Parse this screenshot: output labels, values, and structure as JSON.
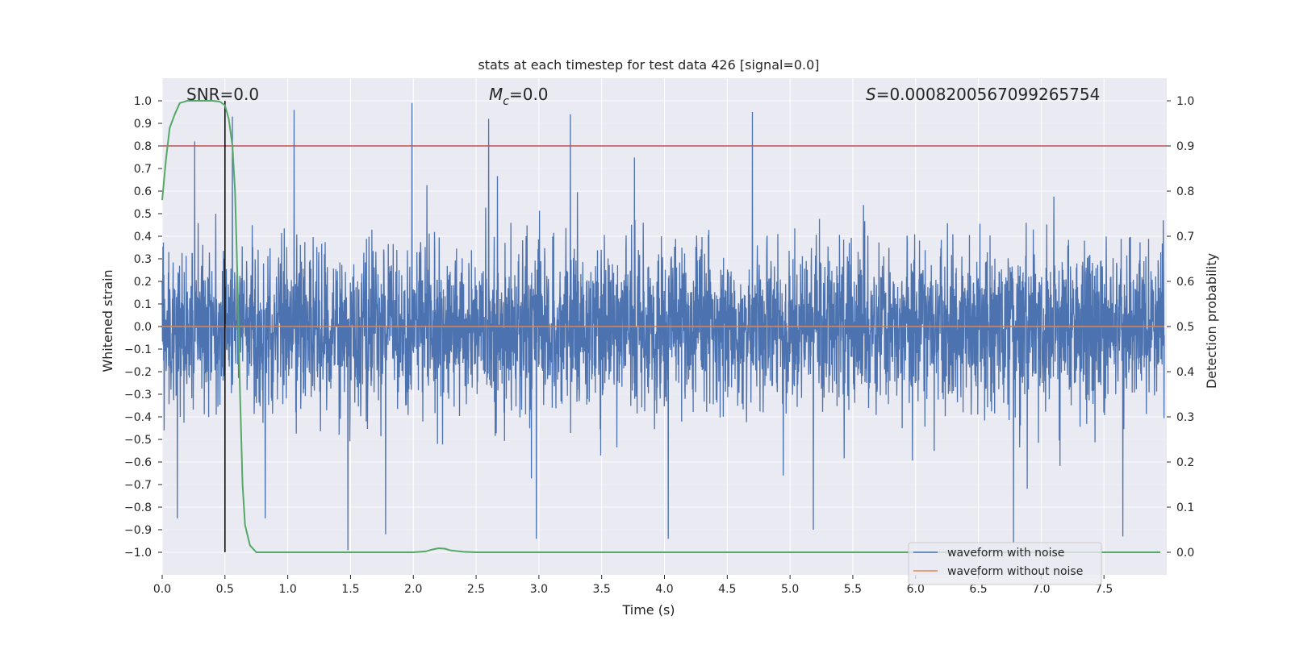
{
  "chart_data": {
    "type": "line",
    "title": "stats at each timestep for test data 426 [signal=0.0]",
    "xlabel": "Time (s)",
    "ylabel": "Whitened strain",
    "y2label": "Detection probability",
    "xlim": [
      0.0,
      8.0
    ],
    "ylim": [
      -1.1,
      1.1
    ],
    "y2lim": [
      -0.05,
      1.05
    ],
    "xticks": [
      0.0,
      0.5,
      1.0,
      1.5,
      2.0,
      2.5,
      3.0,
      3.5,
      4.0,
      4.5,
      5.0,
      5.5,
      6.0,
      6.5,
      7.0,
      7.5
    ],
    "xtick_labels": [
      "0.0",
      "0.5",
      "1.0",
      "1.5",
      "2.0",
      "2.5",
      "3.0",
      "3.5",
      "4.0",
      "4.5",
      "5.0",
      "5.5",
      "6.0",
      "6.5",
      "7.0",
      "7.5"
    ],
    "yticks": [
      -1.0,
      -0.9,
      -0.8,
      -0.7,
      -0.6,
      -0.5,
      -0.4,
      -0.3,
      -0.2,
      -0.1,
      0.0,
      0.1,
      0.2,
      0.3,
      0.4,
      0.5,
      0.6,
      0.7,
      0.8,
      0.9,
      1.0
    ],
    "ytick_labels": [
      "−1.0",
      "−0.9",
      "−0.8",
      "−0.7",
      "−0.6",
      "−0.5",
      "−0.4",
      "−0.3",
      "−0.2",
      "−0.1",
      "0.0",
      "0.1",
      "0.2",
      "0.3",
      "0.4",
      "0.5",
      "0.6",
      "0.7",
      "0.8",
      "0.9",
      "1.0"
    ],
    "y2ticks": [
      0.0,
      0.1,
      0.2,
      0.3,
      0.4,
      0.5,
      0.6,
      0.7,
      0.8,
      0.9,
      1.0
    ],
    "y2tick_labels": [
      "0.0",
      "0.1",
      "0.2",
      "0.3",
      "0.4",
      "0.5",
      "0.6",
      "0.7",
      "0.8",
      "0.9",
      "1.0"
    ],
    "annotations": {
      "snr": "SNR=0.0",
      "mc_symbol": "M",
      "mc_sub": "c",
      "mc_value": "=0.0",
      "s_symbol": "S",
      "s_value": "=0.0008200567099265754"
    },
    "threshold_y2": 0.9,
    "vline_x": 0.5,
    "legend": {
      "placement": "lower-right",
      "entries": [
        {
          "label": "waveform with noise",
          "color": "#4c72b0"
        },
        {
          "label": "waveform without noise",
          "color": "#dd8452"
        }
      ]
    },
    "colors": {
      "noise": "#4c72b0",
      "clean": "#dd8452",
      "probability": "#55a868",
      "threshold": "#c44e52",
      "vline": "#000000",
      "background": "#eaeaf2",
      "grid": "#ffffff"
    },
    "noise_envelope": {
      "description": "dense whitened noise filling approx -0.4..0.4 with peaks",
      "seed": 426,
      "n_samples": 4096,
      "base_sigma": 0.17,
      "peaks": [
        {
          "x": 1.05,
          "y": 0.96
        },
        {
          "x": 1.99,
          "y": 0.99
        },
        {
          "x": 4.7,
          "y": 0.95
        },
        {
          "x": 3.25,
          "y": 0.94
        },
        {
          "x": 0.56,
          "y": 0.93
        },
        {
          "x": 0.26,
          "y": 0.82
        },
        {
          "x": 2.6,
          "y": 0.92
        },
        {
          "x": 1.48,
          "y": -0.99
        },
        {
          "x": 2.98,
          "y": -0.94
        },
        {
          "x": 4.03,
          "y": -0.94
        },
        {
          "x": 7.65,
          "y": -0.93
        },
        {
          "x": 6.78,
          "y": -0.96
        },
        {
          "x": 0.12,
          "y": -0.85
        },
        {
          "x": 0.82,
          "y": -0.85
        },
        {
          "x": 1.78,
          "y": -0.92
        }
      ]
    },
    "probability_series": {
      "x": [
        0.0,
        0.03,
        0.06,
        0.1,
        0.14,
        0.2,
        0.3,
        0.4,
        0.46,
        0.5,
        0.53,
        0.56,
        0.58,
        0.6,
        0.62,
        0.64,
        0.66,
        0.7,
        0.75,
        0.8,
        1.0,
        1.5,
        2.0,
        2.1,
        2.15,
        2.2,
        2.25,
        2.3,
        2.4,
        2.5,
        3.0,
        4.0,
        5.0,
        6.0,
        7.0,
        7.95
      ],
      "y": [
        0.78,
        0.87,
        0.94,
        0.97,
        0.995,
        1.0,
        1.0,
        1.0,
        0.998,
        0.99,
        0.96,
        0.9,
        0.8,
        0.6,
        0.35,
        0.15,
        0.06,
        0.015,
        0.0,
        0.0,
        0.0,
        0.0,
        0.0,
        0.002,
        0.006,
        0.009,
        0.008,
        0.004,
        0.001,
        0.0,
        0.0,
        0.0,
        0.0,
        0.0,
        0.0,
        0.0
      ]
    }
  }
}
